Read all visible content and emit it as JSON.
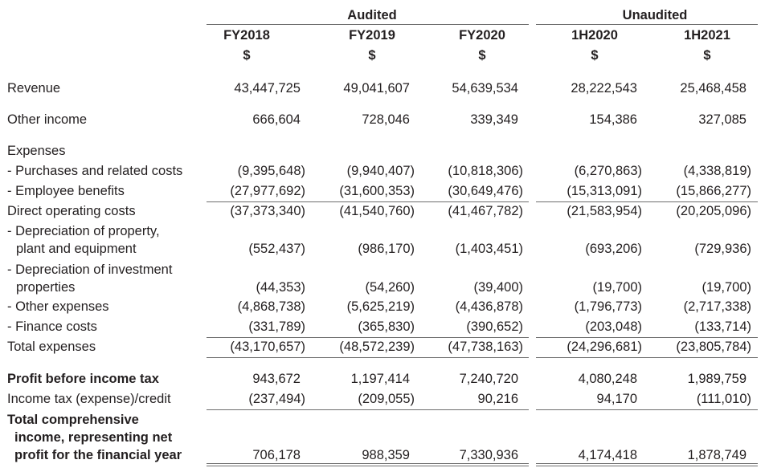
{
  "header": {
    "groups": [
      {
        "label": "Audited"
      },
      {
        "label": "Unaudited"
      }
    ],
    "columns": [
      {
        "label": "FY2018",
        "unit": "$"
      },
      {
        "label": "FY2019",
        "unit": "$"
      },
      {
        "label": "FY2020",
        "unit": "$"
      },
      {
        "label": "1H2020",
        "unit": "$"
      },
      {
        "label": "1H2021",
        "unit": "$"
      }
    ]
  },
  "rows": [
    {
      "label": [
        "Revenue"
      ],
      "values": [
        "43,447,725",
        "49,041,607",
        "54,639,534",
        "28,222,543",
        "25,468,458"
      ]
    },
    {
      "label": [
        "Other income"
      ],
      "values": [
        "666,604",
        "728,046",
        "339,349",
        "154,386",
        "327,085"
      ]
    },
    {
      "label": [
        "Expenses"
      ],
      "values": []
    },
    {
      "label": [
        "- Purchases and related costs"
      ],
      "values": [
        "(9,395,648)",
        "(9,940,407)",
        "(10,818,306)",
        "(6,270,863)",
        "(4,338,819)"
      ]
    },
    {
      "label": [
        "- Employee benefits"
      ],
      "values": [
        "(27,977,692)",
        "(31,600,353)",
        "(30,649,476)",
        "(15,313,091)",
        "(15,866,277)"
      ]
    },
    {
      "label": [
        "Direct operating costs"
      ],
      "values": [
        "(37,373,340)",
        "(41,540,760)",
        "(41,467,782)",
        "(21,583,954)",
        "(20,205,096)"
      ]
    },
    {
      "label": [
        "- Depreciation of property,",
        "plant and equipment"
      ],
      "values": [
        "(552,437)",
        "(986,170)",
        "(1,403,451)",
        "(693,206)",
        "(729,936)"
      ]
    },
    {
      "label": [
        "- Depreciation of investment",
        "properties"
      ],
      "values": [
        "(44,353)",
        "(54,260)",
        "(39,400)",
        "(19,700)",
        "(19,700)"
      ]
    },
    {
      "label": [
        "- Other expenses"
      ],
      "values": [
        "(4,868,738)",
        "(5,625,219)",
        "(4,436,878)",
        "(1,796,773)",
        "(2,717,338)"
      ]
    },
    {
      "label": [
        "- Finance costs"
      ],
      "values": [
        "(331,789)",
        "(365,830)",
        "(390,652)",
        "(203,048)",
        "(133,714)"
      ]
    },
    {
      "label": [
        "Total expenses"
      ],
      "values": [
        "(43,170,657)",
        "(48,572,239)",
        "(47,738,163)",
        "(24,296,681)",
        "(23,805,784)"
      ]
    },
    {
      "label": [
        "Profit before income tax"
      ],
      "values": [
        "943,672",
        "1,197,414",
        "7,240,720",
        "4,080,248",
        "1,989,759"
      ]
    },
    {
      "label": [
        "Income tax (expense)/credit"
      ],
      "values": [
        "(237,494)",
        "(209,055)",
        "90,216",
        "94,170",
        "(111,010)"
      ]
    },
    {
      "label": [
        "Total comprehensive",
        "income, representing net",
        "profit for the financial year"
      ],
      "values": [
        "706,178",
        "988,359",
        "7,330,936",
        "4,174,418",
        "1,878,749"
      ]
    }
  ]
}
